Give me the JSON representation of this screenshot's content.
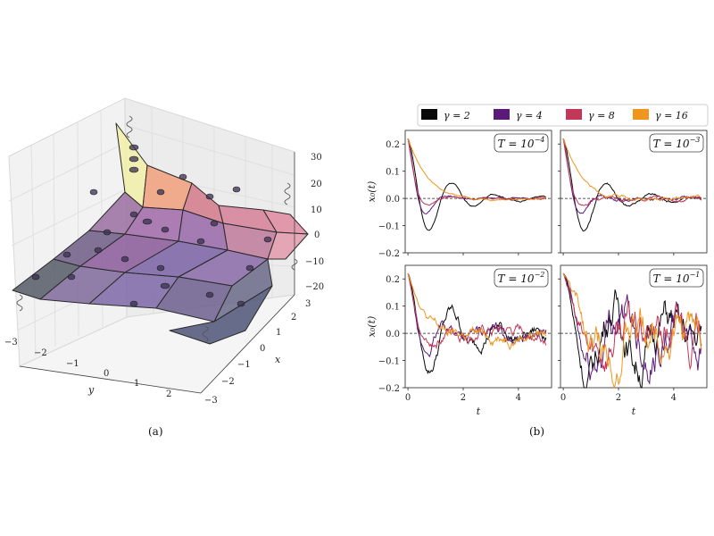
{
  "captions": {
    "a": "(a)",
    "b": "(b)"
  },
  "surface3d": {
    "x_label": "x",
    "y_label": "y",
    "x_ticks": [
      "3",
      "2",
      "1",
      "0",
      "−1",
      "−2",
      "−3"
    ],
    "y_ticks": [
      "−3",
      "−2",
      "−1",
      "0",
      "1",
      "2"
    ],
    "z_ticks": [
      "30",
      "20",
      "10",
      "0",
      "−10",
      "−20"
    ]
  },
  "chart_data": {
    "type": "line",
    "xlabel": "t",
    "ylabel": "x₀(t)",
    "xlim": [
      -0.1,
      5.2
    ],
    "ylim": [
      -0.2,
      0.25
    ],
    "x_ticks": [
      "0",
      "2",
      "4"
    ],
    "y_ticks": [
      "0.2",
      "0.1",
      "0.0",
      "−0.1",
      "−0.2"
    ],
    "legend": {
      "placement": "top",
      "entries": [
        {
          "label": "γ = 2",
          "color": "#0a0a0a"
        },
        {
          "label": "γ = 4",
          "color": "#5b1a7a"
        },
        {
          "label": "γ = 8",
          "color": "#c1385a"
        },
        {
          "label": "γ = 16",
          "color": "#f0961e"
        }
      ]
    },
    "panels": [
      {
        "title": "T = 10",
        "exp": "−4",
        "noise": 0.004,
        "series": [
          {
            "name": "γ = 2",
            "color": "#0a0a0a",
            "amp": 0.22,
            "tau": 1.2,
            "omega": 3.9
          },
          {
            "name": "γ = 4",
            "color": "#5b1a7a",
            "amp": 0.22,
            "tau": 0.5,
            "omega": 4.2
          },
          {
            "name": "γ = 8",
            "color": "#c1385a",
            "amp": 0.22,
            "tau": 0.35,
            "omega": 3.5
          },
          {
            "name": "γ = 16",
            "color": "#f0961e",
            "amp": 0.22,
            "tau": 0.75,
            "omega": 0.6
          }
        ]
      },
      {
        "title": "T = 10",
        "exp": "−3",
        "noise": 0.008,
        "series": [
          {
            "name": "γ = 2",
            "color": "#0a0a0a",
            "amp": 0.22,
            "tau": 1.2,
            "omega": 3.9
          },
          {
            "name": "γ = 4",
            "color": "#5b1a7a",
            "amp": 0.22,
            "tau": 0.5,
            "omega": 4.2
          },
          {
            "name": "γ = 8",
            "color": "#c1385a",
            "amp": 0.22,
            "tau": 0.35,
            "omega": 3.5
          },
          {
            "name": "γ = 16",
            "color": "#f0961e",
            "amp": 0.22,
            "tau": 0.75,
            "omega": 0.6
          }
        ]
      },
      {
        "title": "T = 10",
        "exp": "−2",
        "noise": 0.03,
        "series": [
          {
            "name": "γ = 2",
            "color": "#0a0a0a",
            "amp": 0.22,
            "tau": 1.5,
            "omega": 3.9
          },
          {
            "name": "γ = 4",
            "color": "#5b1a7a",
            "amp": 0.22,
            "tau": 0.7,
            "omega": 4.2
          },
          {
            "name": "γ = 8",
            "color": "#c1385a",
            "amp": 0.22,
            "tau": 0.5,
            "omega": 3.5
          },
          {
            "name": "γ = 16",
            "color": "#f0961e",
            "amp": 0.22,
            "tau": 0.8,
            "omega": 1.2
          }
        ]
      },
      {
        "title": "T = 10",
        "exp": "−1",
        "noise": 0.09,
        "series": [
          {
            "name": "γ = 2",
            "color": "#0a0a0a",
            "amp": 0.22,
            "tau": 3.0,
            "omega": 3.4
          },
          {
            "name": "γ = 4",
            "color": "#5b1a7a",
            "amp": 0.22,
            "tau": 2.0,
            "omega": 3.0
          },
          {
            "name": "γ = 8",
            "color": "#c1385a",
            "amp": 0.22,
            "tau": 1.2,
            "omega": 2.6
          },
          {
            "name": "γ = 16",
            "color": "#f0961e",
            "amp": 0.22,
            "tau": 1.5,
            "omega": 1.8
          }
        ]
      }
    ]
  }
}
